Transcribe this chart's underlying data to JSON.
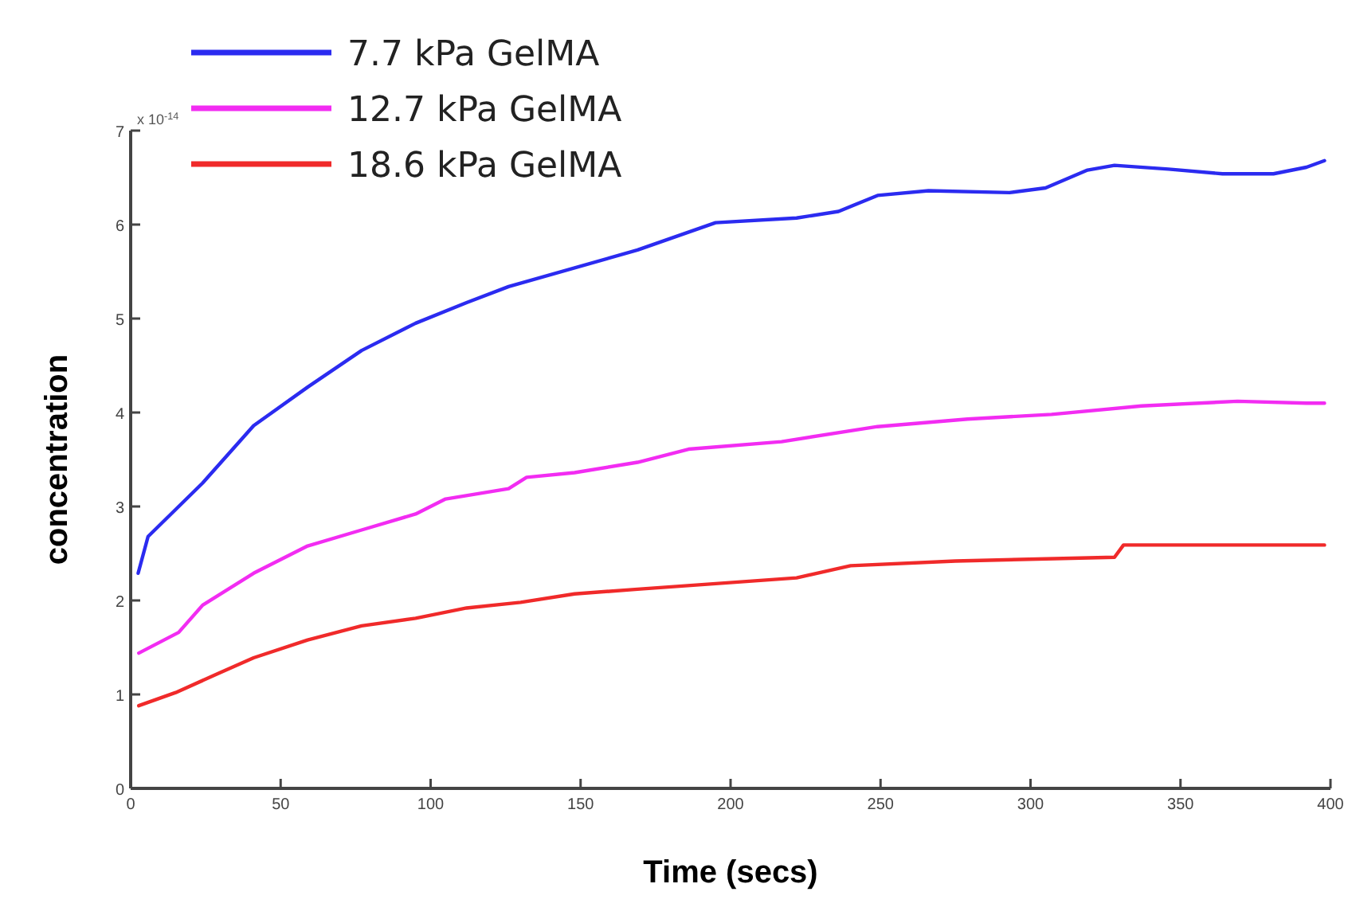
{
  "chart_data": {
    "type": "line",
    "xlabel": "Time (secs)",
    "ylabel": "concentration",
    "annotations": [
      "x 10$^{-14}$"
    ],
    "xlim": [
      0,
      400
    ],
    "xticks": [
      0,
      50,
      100,
      150,
      200,
      250,
      300,
      350,
      400
    ],
    "ylim": [
      0,
      7
    ],
    "yticks": [
      0,
      1,
      2,
      3,
      4,
      5,
      6,
      7
    ],
    "grid": false,
    "legend": "top",
    "marker": "none",
    "line_style": "solid",
    "series": [
      {
        "name": "7.7 kPa GelMA",
        "color": "#2b2bf0",
        "x": [
          2.5,
          5.8,
          24,
          41,
          59,
          77,
          95,
          112,
          126,
          169,
          195,
          222,
          236,
          249,
          266,
          293,
          305,
          319,
          328,
          346,
          364,
          381,
          392,
          398
        ],
        "values": [
          2.29,
          2.68,
          3.25,
          3.86,
          4.27,
          4.66,
          4.95,
          5.17,
          5.34,
          5.73,
          6.02,
          6.07,
          6.14,
          6.31,
          6.36,
          6.34,
          6.39,
          6.58,
          6.63,
          6.59,
          6.54,
          6.54,
          6.61,
          6.68
        ]
      },
      {
        "name": "12.7 kPa GelMA",
        "color": "#f22cf2",
        "x": [
          2.7,
          16,
          24,
          41,
          59,
          77,
          95,
          105,
          126,
          132,
          148,
          169,
          186,
          217,
          249,
          279,
          307,
          337,
          369,
          392,
          398
        ],
        "values": [
          1.44,
          1.66,
          1.95,
          2.29,
          2.58,
          2.75,
          2.92,
          3.08,
          3.19,
          3.31,
          3.36,
          3.47,
          3.61,
          3.69,
          3.85,
          3.93,
          3.98,
          4.07,
          4.12,
          4.1,
          4.1
        ]
      },
      {
        "name": "18.6 kPa GelMA",
        "color": "#f02a2a",
        "x": [
          2.7,
          15,
          29,
          41,
          59,
          77,
          95,
          112,
          130,
          148,
          169,
          222,
          240,
          275,
          328,
          331,
          364,
          392,
          398
        ],
        "values": [
          0.88,
          1.02,
          1.22,
          1.39,
          1.58,
          1.73,
          1.81,
          1.92,
          1.98,
          2.07,
          2.12,
          2.24,
          2.37,
          2.42,
          2.46,
          2.59,
          2.59,
          2.59,
          2.59
        ]
      }
    ]
  }
}
